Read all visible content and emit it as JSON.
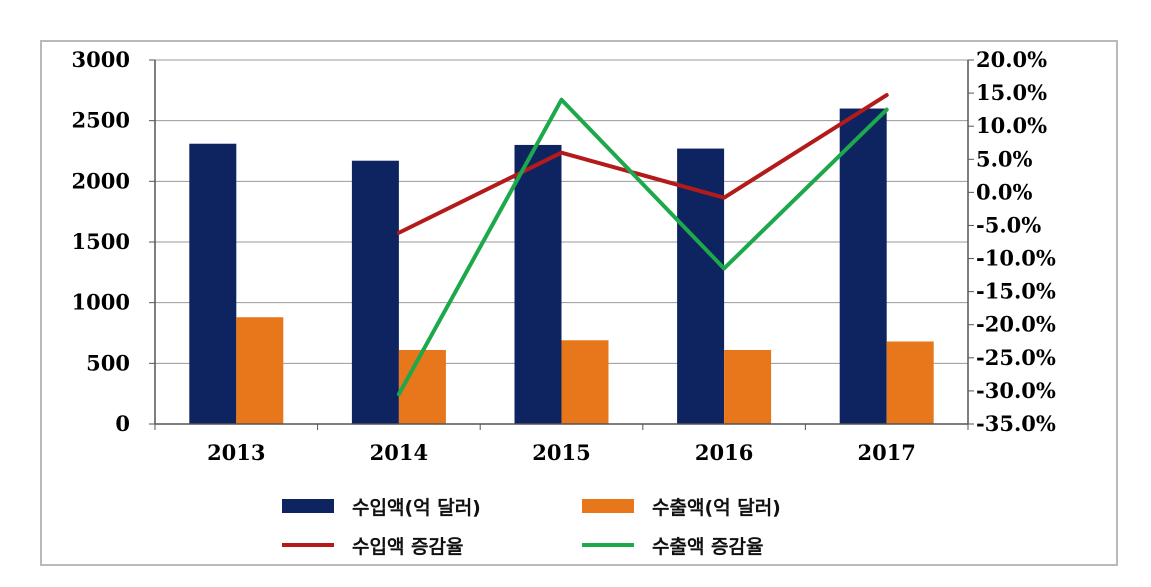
{
  "chart_data": {
    "type": "bar",
    "categories": [
      "2013",
      "2014",
      "2015",
      "2016",
      "2017"
    ],
    "series": [
      {
        "name": "수입액(억 달러)",
        "kind": "bar",
        "axis": "left",
        "color": "#0e2461",
        "values": [
          2310,
          2170,
          2300,
          2270,
          2600
        ]
      },
      {
        "name": "수출액(억 달러)",
        "kind": "bar",
        "axis": "left",
        "color": "#e8771b",
        "values": [
          880,
          610,
          690,
          610,
          680
        ]
      },
      {
        "name": "수입액 증감율",
        "kind": "line",
        "axis": "right",
        "color": "#b31b1b",
        "values": [
          null,
          -6.1,
          6.0,
          -0.8,
          14.7
        ]
      },
      {
        "name": "수출액 증감율",
        "kind": "line",
        "axis": "right",
        "color": "#1ca84b",
        "values": [
          null,
          -30.5,
          14.0,
          -11.5,
          12.5
        ]
      }
    ],
    "y_left": {
      "min": 0,
      "max": 3000,
      "ticks": [
        "0",
        "500",
        "1000",
        "1500",
        "2000",
        "2500",
        "3000"
      ]
    },
    "y_right": {
      "min": -35,
      "max": 20,
      "ticks": [
        "-35.0%",
        "-30.0%",
        "-25.0%",
        "-20.0%",
        "-15.0%",
        "-10.0%",
        "-5.0%",
        "0.0%",
        "5.0%",
        "10.0%",
        "15.0%",
        "20.0%"
      ]
    },
    "grid": true,
    "legend_position": "bottom"
  }
}
